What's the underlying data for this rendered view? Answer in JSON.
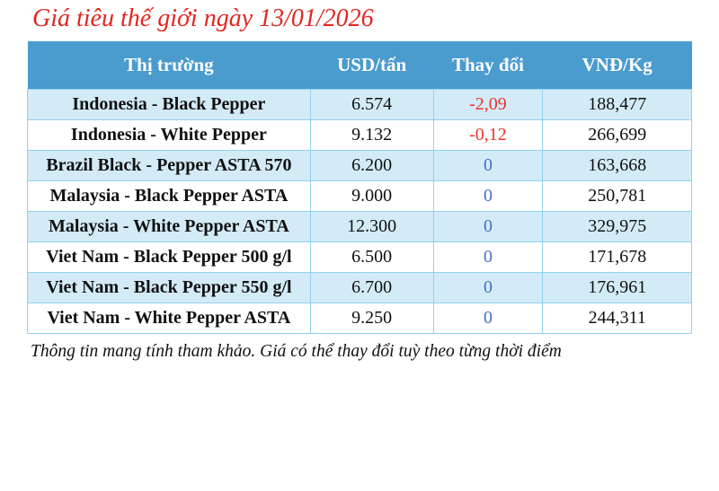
{
  "title": "Giá tiêu thế giới ngày 13/01/2026",
  "table": {
    "headers": [
      "Thị trường",
      "USD/tấn",
      "Thay đổi",
      "VNĐ/Kg"
    ],
    "rows": [
      {
        "market": "Indonesia - Black Pepper",
        "usd": "6.574",
        "change": "-2,09",
        "change_type": "negative",
        "vnd": "188,477"
      },
      {
        "market": "Indonesia - White Pepper",
        "usd": "9.132",
        "change": "-0,12",
        "change_type": "negative",
        "vnd": "266,699"
      },
      {
        "market": "Brazil Black - Pepper ASTA 570",
        "usd": "6.200",
        "change": "0",
        "change_type": "zero",
        "vnd": "163,668"
      },
      {
        "market": "Malaysia - Black Pepper ASTA",
        "usd": "9.000",
        "change": "0",
        "change_type": "zero",
        "vnd": "250,781"
      },
      {
        "market": "Malaysia - White Pepper ASTA",
        "usd": "12.300",
        "change": "0",
        "change_type": "zero",
        "vnd": "329,975"
      },
      {
        "market": "Viet Nam - Black Pepper 500 g/l",
        "usd": "6.500",
        "change": "0",
        "change_type": "zero",
        "vnd": "171,678"
      },
      {
        "market": "Viet Nam - Black Pepper 550 g/l",
        "usd": "6.700",
        "change": "0",
        "change_type": "zero",
        "vnd": "176,961"
      },
      {
        "market": "Viet Nam - White Pepper ASTA",
        "usd": "9.250",
        "change": "0",
        "change_type": "zero",
        "vnd": "244,311"
      }
    ]
  },
  "footer": "Thông tin mang tính tham khảo. Giá có thể thay đổi tuỳ theo từng thời điểm",
  "colors": {
    "title_red": "#e32620",
    "header_bg": "#4a9bce",
    "row_alt_bg": "#d3ebf7",
    "border": "#8fd1ee",
    "negative": "#ed3329",
    "zero": "#4472c4"
  }
}
